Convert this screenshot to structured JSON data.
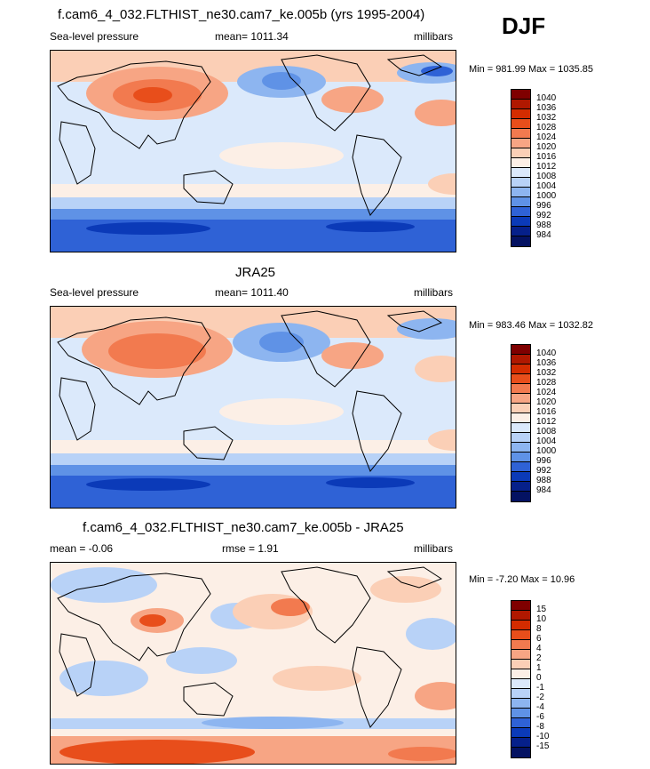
{
  "season": "DJF",
  "panel1": {
    "title": "f.cam6_4_032.FLTHIST_ne30.cam7_ke.005b (yrs 1995-2004)",
    "left": "Sea-level pressure",
    "mean": "mean= 1011.34",
    "units": "millibars",
    "minmax": "Min = 981.99 Max = 1035.85"
  },
  "panel2": {
    "title": "JRA25",
    "left": "Sea-level pressure",
    "mean": "mean= 1011.40",
    "units": "millibars",
    "minmax": "Min = 983.46 Max = 1032.82"
  },
  "panel3": {
    "title": "f.cam6_4_032.FLTHIST_ne30.cam7_ke.005b - JRA25",
    "left": "mean =  -0.06",
    "mean": "rmse =   1.91",
    "units": "millibars",
    "minmax": "Min =  -7.20 Max =  10.96"
  },
  "colorbar_abs": {
    "levels": [
      "1040",
      "1036",
      "1032",
      "1028",
      "1024",
      "1020",
      "1016",
      "1012",
      "1008",
      "1004",
      "1000",
      "996",
      "992",
      "988",
      "984"
    ],
    "colors": [
      "#7f0000",
      "#b01800",
      "#d42c00",
      "#e84e1b",
      "#f27a4f",
      "#f7a584",
      "#fbcfb6",
      "#fcefe6",
      "#dbe9fb",
      "#b8d2f7",
      "#8db5f0",
      "#5f92e6",
      "#2f62d6",
      "#0b3ab8",
      "#06208a",
      "#041262"
    ]
  },
  "colorbar_diff": {
    "levels": [
      "15",
      "10",
      "8",
      "6",
      "4",
      "2",
      "1",
      "0",
      "-1",
      "-2",
      "-4",
      "-6",
      "-8",
      "-10",
      "-15"
    ],
    "colors": [
      "#7f0000",
      "#b01800",
      "#d42c00",
      "#e84e1b",
      "#f27a4f",
      "#f7a584",
      "#fbcfb6",
      "#fcefe6",
      "#dbe9fb",
      "#b8d2f7",
      "#8db5f0",
      "#5f92e6",
      "#2f62d6",
      "#0b3ab8",
      "#06208a",
      "#041262"
    ]
  }
}
